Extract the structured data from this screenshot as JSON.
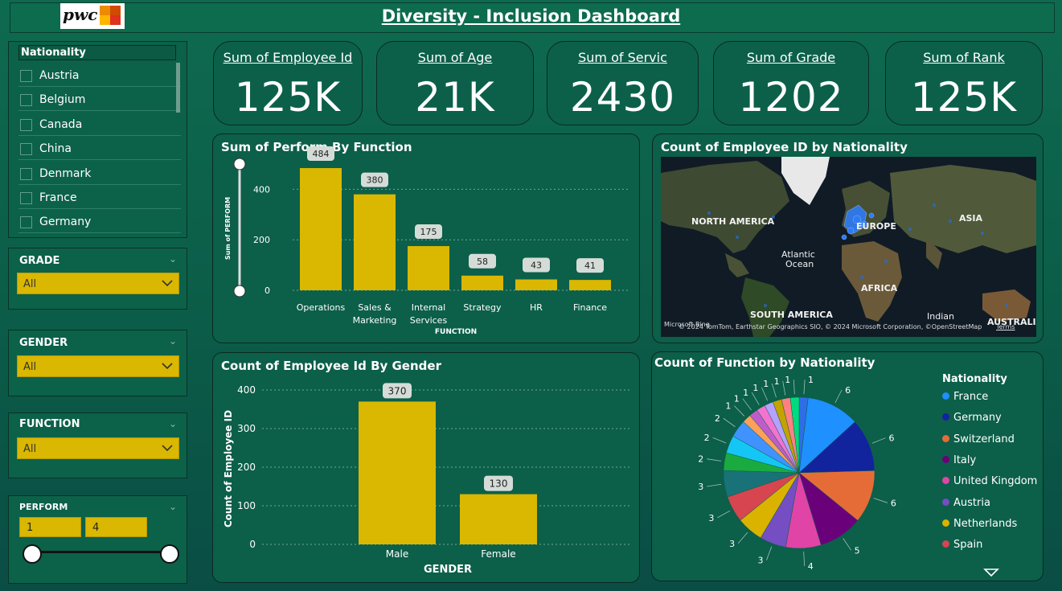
{
  "header": {
    "title": "Diversity - Inclusion Dashboard",
    "logo_text": "pwc"
  },
  "nationality_slicer": {
    "title": "Nationality",
    "items": [
      "Austria",
      "Belgium",
      "Canada",
      "China",
      "Denmark",
      "France",
      "Germany"
    ]
  },
  "filters": {
    "grade": {
      "title": "GRADE",
      "value": "All"
    },
    "gender": {
      "title": "GENDER",
      "value": "All"
    },
    "function": {
      "title": "FUNCTION",
      "value": "All"
    },
    "perform": {
      "title": "PERFORM",
      "min": "1",
      "max": "4"
    }
  },
  "kpis": [
    {
      "label": "Sum of Employee Id",
      "value": "125K"
    },
    {
      "label": "Sum of Age",
      "value": "21K"
    },
    {
      "label": "Sum of Servic",
      "value": "2430"
    },
    {
      "label": "Sum of Grade",
      "value": "1202"
    },
    {
      "label": "Sum of Rank",
      "value": "125K"
    }
  ],
  "perform_chart": {
    "title": "Sum of Perform By Function",
    "chart_data": {
      "type": "bar",
      "categories": [
        "Operations",
        "Sales & Marketing",
        "Internal Services",
        "Strategy",
        "HR",
        "Finance"
      ],
      "values": [
        484,
        380,
        175,
        58,
        43,
        41
      ],
      "xlabel": "FUNCTION",
      "ylabel": "Sum of PERFORM",
      "ylim": [
        0,
        500
      ],
      "yticks": [
        "0",
        "200",
        "400"
      ],
      "grid": true
    }
  },
  "gender_chart": {
    "title": "Count of Employee Id By Gender",
    "chart_data": {
      "type": "bar",
      "categories": [
        "Male",
        "Female"
      ],
      "values": [
        370,
        130
      ],
      "xlabel": "GENDER",
      "ylabel": "Count of Employee ID",
      "ylim": [
        0,
        400
      ],
      "yticks": [
        "0",
        "100",
        "200",
        "300",
        "400"
      ],
      "grid": true
    }
  },
  "map_chart": {
    "title": "Count of Employee ID by Nationality",
    "labels": [
      "NORTH AMERICA",
      "EUROPE",
      "ASIA",
      "Atlantic",
      "Ocean",
      "AFRICA",
      "SOUTH AMERICA",
      "Indian",
      "AUSTRALIA"
    ],
    "attribution": "© 2024 TomTom, Earthstar Geographics SIO, © 2024 Microsoft Corporation, ©OpenStreetMap",
    "terms": "Terms",
    "brand": "Microsoft Bing"
  },
  "pie_chart": {
    "title": "Count of Function by Nationality",
    "legend_title": "Nationality",
    "legend": [
      {
        "name": "France",
        "color": "#1e90ff"
      },
      {
        "name": "Germany",
        "color": "#12239e"
      },
      {
        "name": "Switzerland",
        "color": "#e66c37"
      },
      {
        "name": "Italy",
        "color": "#6b007b"
      },
      {
        "name": "United Kingdom",
        "color": "#e044a7"
      },
      {
        "name": "Austria",
        "color": "#744ec2"
      },
      {
        "name": "Netherlands",
        "color": "#d9b300"
      },
      {
        "name": "Spain",
        "color": "#d64550"
      }
    ],
    "chart_data": {
      "type": "pie",
      "values": [
        6,
        6,
        6,
        5,
        4,
        3,
        3,
        3,
        3,
        2,
        2,
        2,
        1,
        1,
        1,
        1,
        1,
        1,
        1,
        1
      ],
      "colors": [
        "#1e90ff",
        "#12239e",
        "#e66c37",
        "#6b007b",
        "#e044a7",
        "#744ec2",
        "#d9b300",
        "#d64550",
        "#197278",
        "#1aab40",
        "#15c6f4",
        "#4092ff",
        "#ffa058",
        "#be5dc9",
        "#f472d0",
        "#b5a1ff",
        "#c4a200",
        "#ff8080",
        "#00db81",
        "#2f6de6"
      ]
    }
  }
}
